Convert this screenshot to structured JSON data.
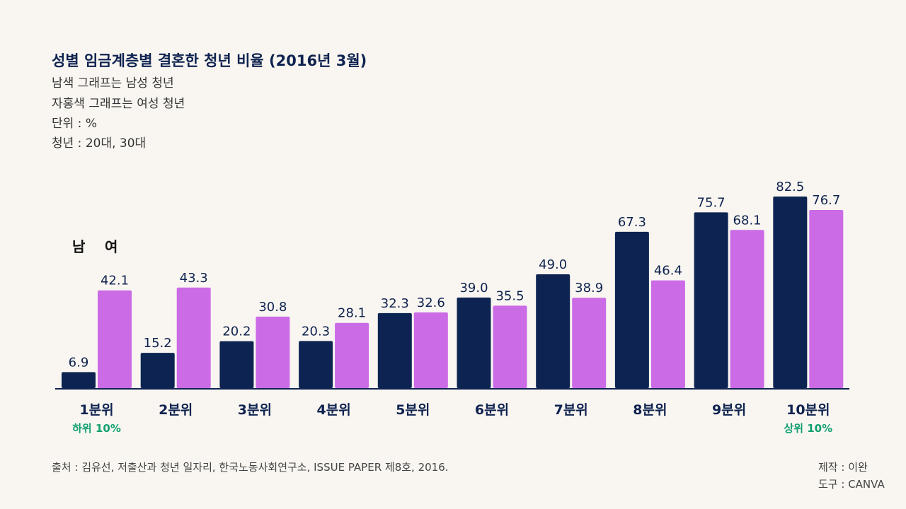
{
  "chart_data": {
    "type": "bar",
    "title": "성별 임금계층별 결혼한 청년 비율 (2016년 3월)",
    "subtitles": [
      "남색 그래프는 남성 청년",
      "자홍색 그래프는 여성 청년",
      "단위 : %",
      "청년 : 20대, 30대"
    ],
    "categories": [
      "1분위",
      "2분위",
      "3분위",
      "4분위",
      "5분위",
      "6분위",
      "7분위",
      "8분위",
      "9분위",
      "10분위"
    ],
    "category_notes": {
      "first": "하위 10%",
      "last": "상위 10%"
    },
    "series": [
      {
        "name": "남",
        "color": "#0d2452",
        "values": [
          6.9,
          15.2,
          20.2,
          20.3,
          32.3,
          39.0,
          49.0,
          67.3,
          75.7,
          82.5
        ]
      },
      {
        "name": "여",
        "color": "#cc6be6",
        "values": [
          42.1,
          43.3,
          30.8,
          28.1,
          32.6,
          35.5,
          38.9,
          46.4,
          68.1,
          76.7
        ]
      }
    ],
    "ylim": [
      0,
      85
    ],
    "grid": false,
    "legend_placement": "top-left",
    "note_color": "#11a070"
  },
  "footer": {
    "source": "출처 : 김유선, 저출산과 청년 일자리, 한국노동사회연구소, ISSUE PAPER 제8호, 2016.",
    "maker": "제작 : 이완",
    "tool": "도구 : CANVA"
  }
}
